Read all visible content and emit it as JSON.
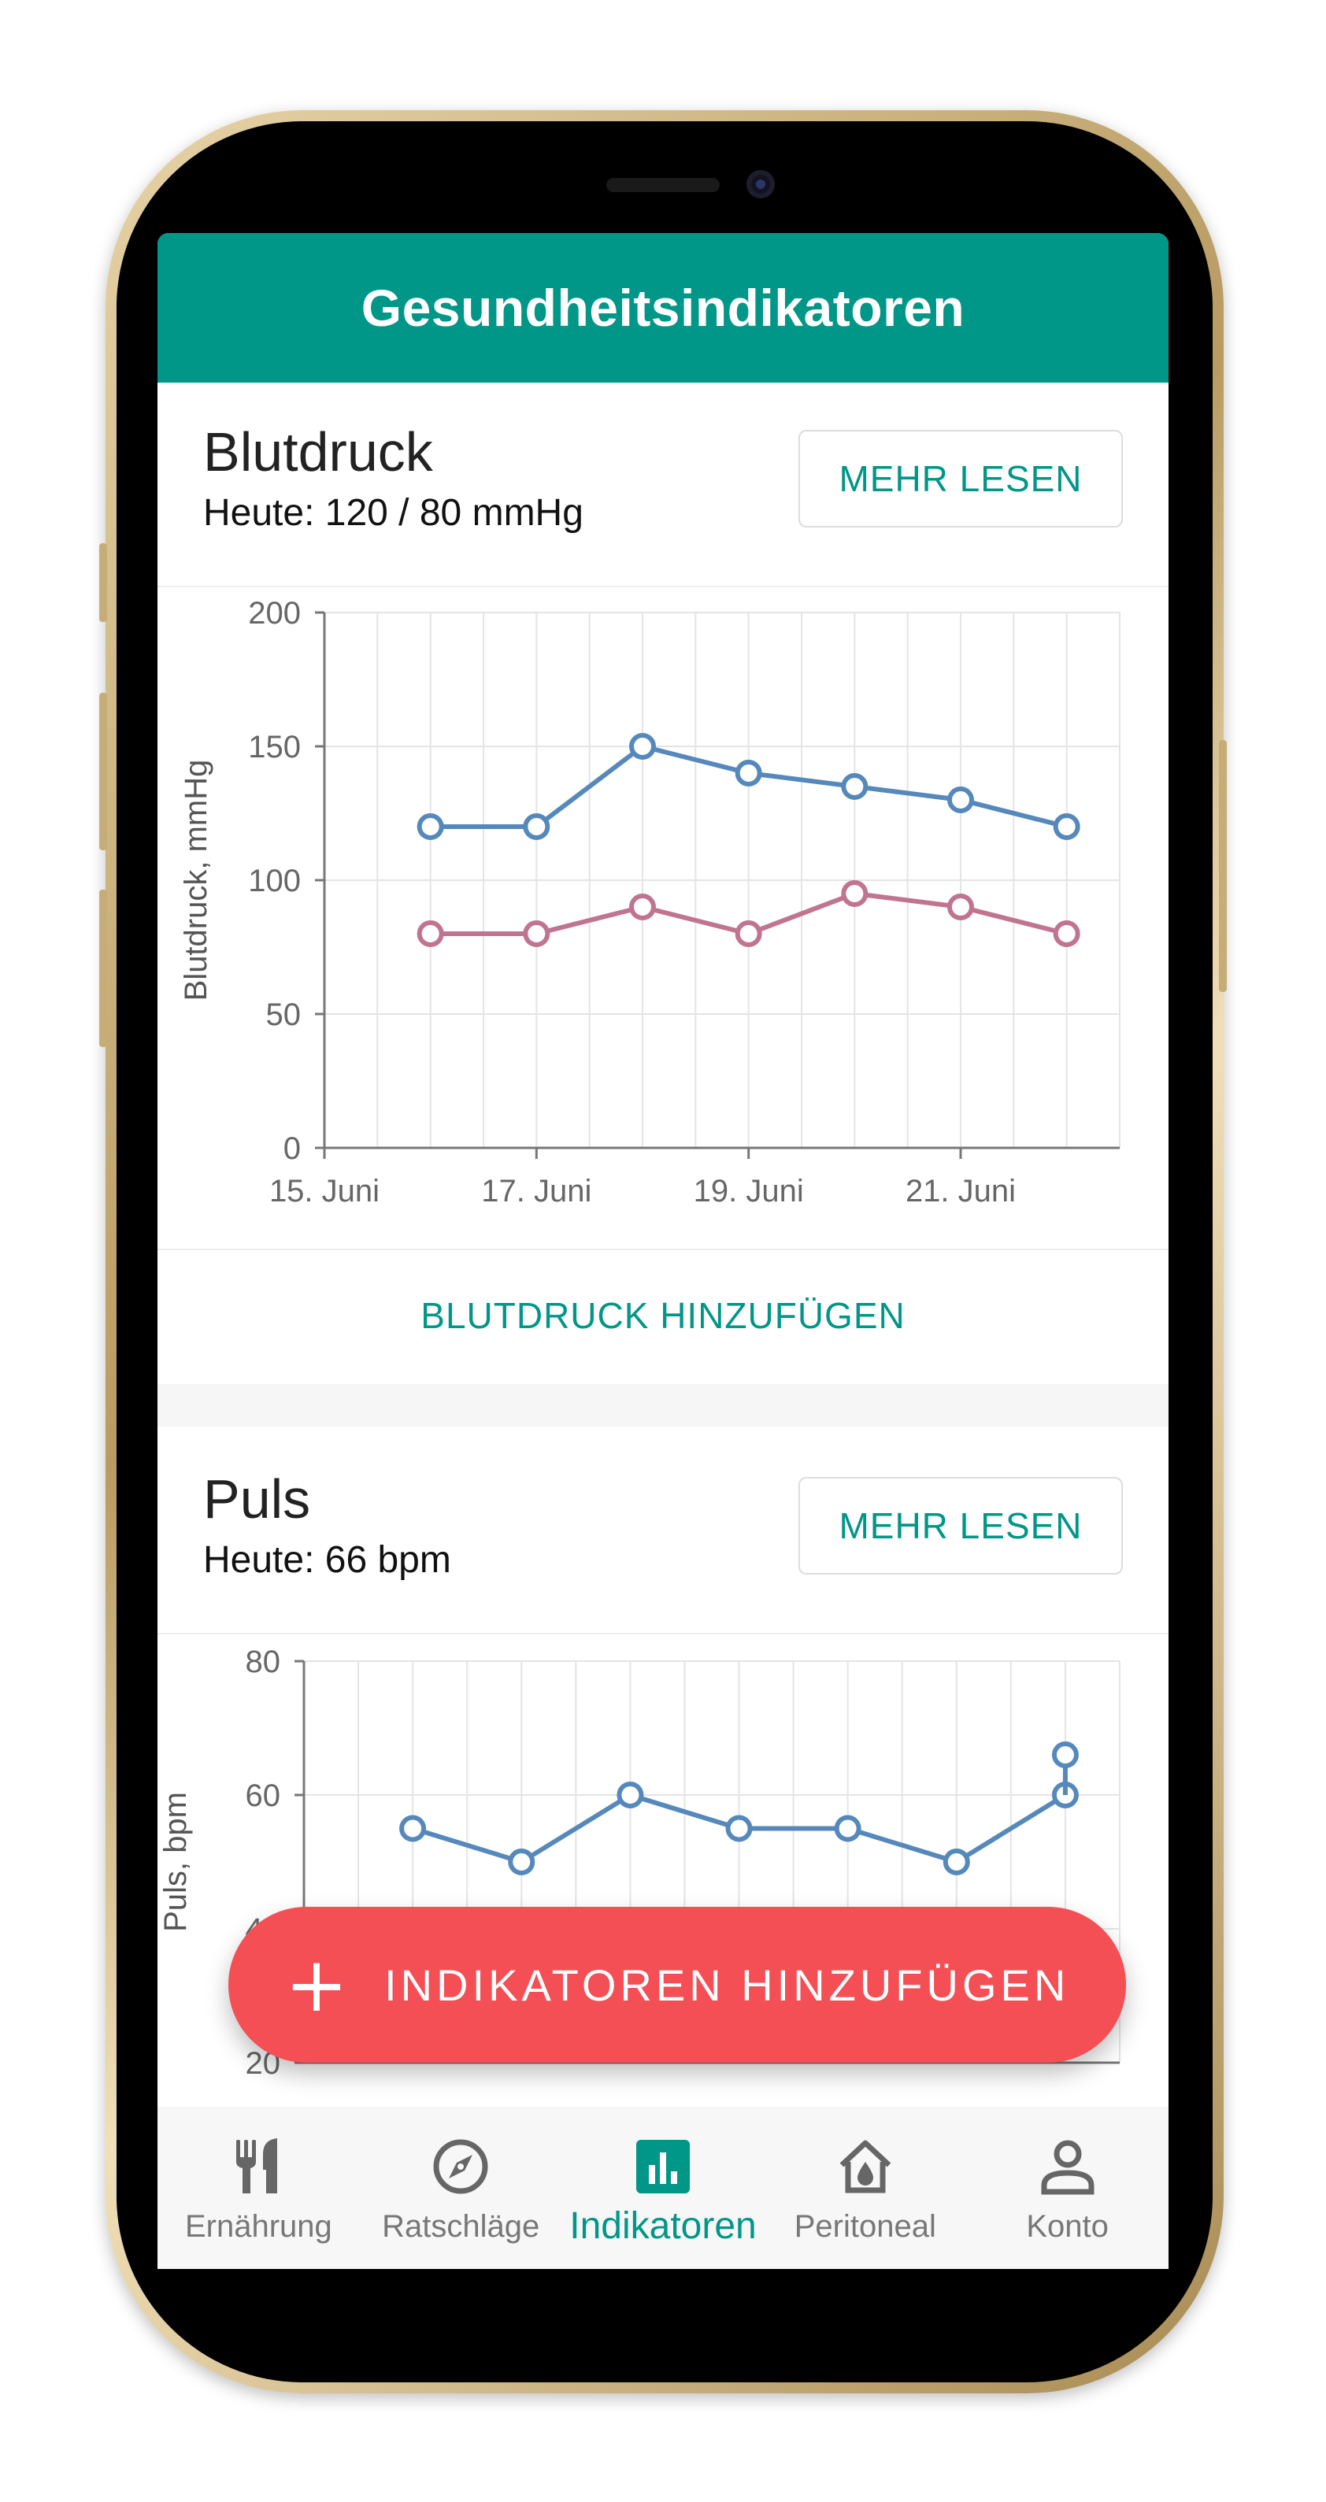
{
  "app": {
    "title": "Gesundheitsindikatoren"
  },
  "colors": {
    "primary": "#009688",
    "systolic": "#5588bb",
    "diastolic": "#c07490",
    "pulse": "#5588bb",
    "fab": "#f44f55"
  },
  "blood_pressure": {
    "title": "Blutdruck",
    "today": "Heute: 120 / 80 mmHg",
    "more_label": "MEHR LESEN",
    "add_label": "BLUTDRUCK HINZUFÜGEN"
  },
  "pulse": {
    "title": "Puls",
    "today": "Heute: 66 bpm",
    "more_label": "MEHR LESEN"
  },
  "fab": {
    "label": "INDIKATOREN HINZUFÜGEN",
    "icon": "plus-icon"
  },
  "bottom_nav": {
    "items": [
      {
        "label": "Ernährung",
        "icon": "fork-knife-icon",
        "active": false
      },
      {
        "label": "Ratschläge",
        "icon": "compass-icon",
        "active": false
      },
      {
        "label": "Indikatoren",
        "icon": "bar-chart-icon",
        "active": true
      },
      {
        "label": "Peritoneal",
        "icon": "house-drop-icon",
        "active": false
      },
      {
        "label": "Konto",
        "icon": "person-icon",
        "active": false
      }
    ]
  },
  "chart_data": [
    {
      "type": "line",
      "ylabel": "Blutdruck, mmHg",
      "ylim": [
        0,
        200
      ],
      "yticks": [
        0,
        50,
        100,
        150,
        200
      ],
      "xticks": [
        "15. Juni",
        "17. Juni",
        "19. Juni",
        "21. Juni"
      ],
      "x": [
        "2023-06-16",
        "2023-06-17",
        "2023-06-18",
        "2023-06-19",
        "2023-06-20",
        "2023-06-21",
        "2023-06-22"
      ],
      "series": [
        {
          "values": [
            120,
            120,
            150,
            140,
            135,
            130,
            120
          ]
        },
        {
          "values": [
            80,
            80,
            90,
            80,
            95,
            90,
            80
          ]
        }
      ],
      "grid": true
    },
    {
      "type": "line",
      "ylabel": "Puls, bpm",
      "ylim": [
        20,
        80
      ],
      "yticks": [
        20,
        40,
        60,
        80
      ],
      "x": [
        "2023-06-16",
        "2023-06-17",
        "2023-06-18",
        "2023-06-19",
        "2023-06-20",
        "2023-06-21",
        "2023-06-22"
      ],
      "series": [
        {
          "values": [
            55,
            50,
            60,
            55,
            55,
            50,
            60
          ]
        }
      ],
      "extra_points": [
        {
          "x": "2023-06-22",
          "value": 66
        }
      ],
      "grid": true
    }
  ]
}
